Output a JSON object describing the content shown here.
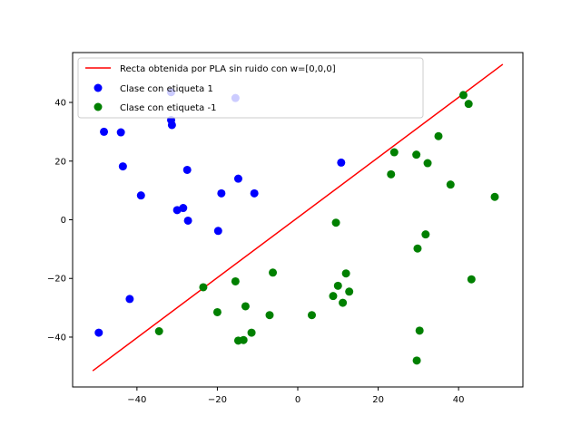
{
  "chart_data": {
    "type": "scatter",
    "title": "",
    "xlabel": "",
    "ylabel": "",
    "xlim": [
      -56,
      56
    ],
    "ylim": [
      -57,
      57
    ],
    "xticks": [
      -40,
      -20,
      0,
      20,
      40
    ],
    "yticks": [
      -40,
      -20,
      0,
      20,
      40
    ],
    "xtick_labels": [
      "−40",
      "−20",
      "0",
      "20",
      "40"
    ],
    "ytick_labels": [
      "−40",
      "−20",
      "0",
      "20",
      "40"
    ],
    "grid": false,
    "legend_position": "top-left",
    "line": {
      "name": "Recta obtenida por PLA sin ruido con w=[0,0,0]",
      "color": "#ff0000",
      "x": [
        -51,
        51
      ],
      "y": [
        -51.5,
        53
      ]
    },
    "series": [
      {
        "name": "Clase con etiqueta 1",
        "color": "#0000ff",
        "points": [
          [
            -49.5,
            -38.5
          ],
          [
            -48.2,
            30.0
          ],
          [
            -44.0,
            29.8
          ],
          [
            -43.5,
            18.2
          ],
          [
            -41.8,
            -27.0
          ],
          [
            -39.0,
            8.3
          ],
          [
            -31.5,
            43.5
          ],
          [
            -31.5,
            34.0
          ],
          [
            -31.3,
            32.3
          ],
          [
            -30.0,
            3.3
          ],
          [
            -28.5,
            4.0
          ],
          [
            -27.5,
            17.0
          ],
          [
            -27.3,
            -0.3
          ],
          [
            -19.8,
            -3.8
          ],
          [
            -19.0,
            9.0
          ],
          [
            -15.5,
            41.5
          ],
          [
            -14.8,
            14.0
          ],
          [
            -10.8,
            9.0
          ],
          [
            10.8,
            19.5
          ]
        ]
      },
      {
        "name": "Clase con etiqueta -1",
        "color": "#008000",
        "points": [
          [
            -34.5,
            -38.0
          ],
          [
            -23.5,
            -23.0
          ],
          [
            -20.0,
            -31.5
          ],
          [
            -15.5,
            -21.0
          ],
          [
            -14.8,
            -41.2
          ],
          [
            -13.5,
            -41.0
          ],
          [
            -13.0,
            -29.5
          ],
          [
            -11.5,
            -38.5
          ],
          [
            -7.0,
            -32.5
          ],
          [
            -6.2,
            -18.0
          ],
          [
            3.5,
            -32.5
          ],
          [
            8.8,
            -26.0
          ],
          [
            9.5,
            -1.0
          ],
          [
            10.0,
            -22.5
          ],
          [
            11.2,
            -28.3
          ],
          [
            12.0,
            -18.3
          ],
          [
            12.8,
            -24.5
          ],
          [
            23.2,
            15.5
          ],
          [
            24.0,
            23.0
          ],
          [
            29.5,
            22.2
          ],
          [
            29.8,
            -9.8
          ],
          [
            30.3,
            -37.8
          ],
          [
            29.6,
            -48.0
          ],
          [
            31.8,
            -5.0
          ],
          [
            32.3,
            19.3
          ],
          [
            35.0,
            28.5
          ],
          [
            38.0,
            12.0
          ],
          [
            41.2,
            42.5
          ],
          [
            42.5,
            39.5
          ],
          [
            43.2,
            -20.3
          ],
          [
            49.0,
            7.8
          ]
        ]
      }
    ]
  }
}
